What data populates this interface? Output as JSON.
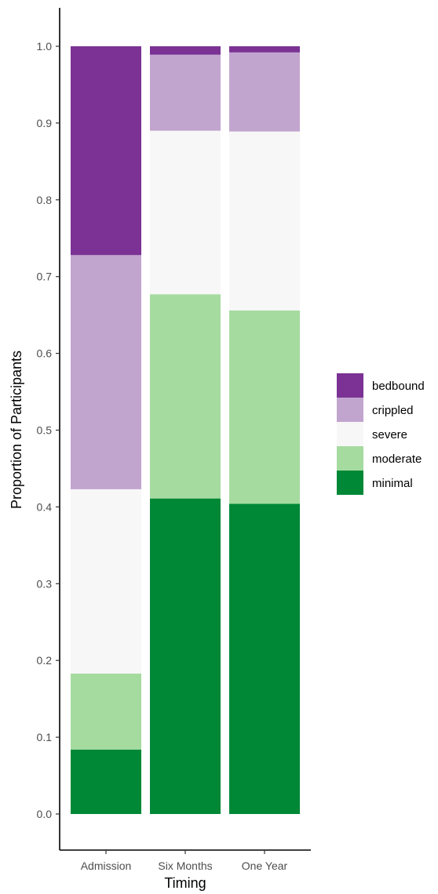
{
  "chart_data": {
    "type": "bar",
    "stacked": true,
    "title": "",
    "xlabel": "Timing",
    "ylabel": "Proportion of Participants",
    "categories": [
      "Admission",
      "Six Months",
      "One Year"
    ],
    "ylim": [
      0,
      1
    ],
    "yticks": [
      "0.0",
      "0.1",
      "0.2",
      "0.3",
      "0.4",
      "0.5",
      "0.6",
      "0.7",
      "0.8",
      "0.9",
      "1.0"
    ],
    "grid": false,
    "legend_position": "right",
    "series": [
      {
        "name": "minimal",
        "color": "#008837",
        "values": [
          0.084,
          0.411,
          0.404
        ]
      },
      {
        "name": "moderate",
        "color": "#a6dba0",
        "values": [
          0.099,
          0.266,
          0.252
        ]
      },
      {
        "name": "severe",
        "color": "#f7f7f7",
        "values": [
          0.24,
          0.213,
          0.233
        ]
      },
      {
        "name": "crippled",
        "color": "#c2a5cf",
        "values": [
          0.305,
          0.099,
          0.103
        ]
      },
      {
        "name": "bedbound",
        "color": "#7b3294",
        "values": [
          0.272,
          0.011,
          0.008
        ]
      }
    ],
    "legend_order": [
      "bedbound",
      "crippled",
      "severe",
      "moderate",
      "minimal"
    ]
  }
}
